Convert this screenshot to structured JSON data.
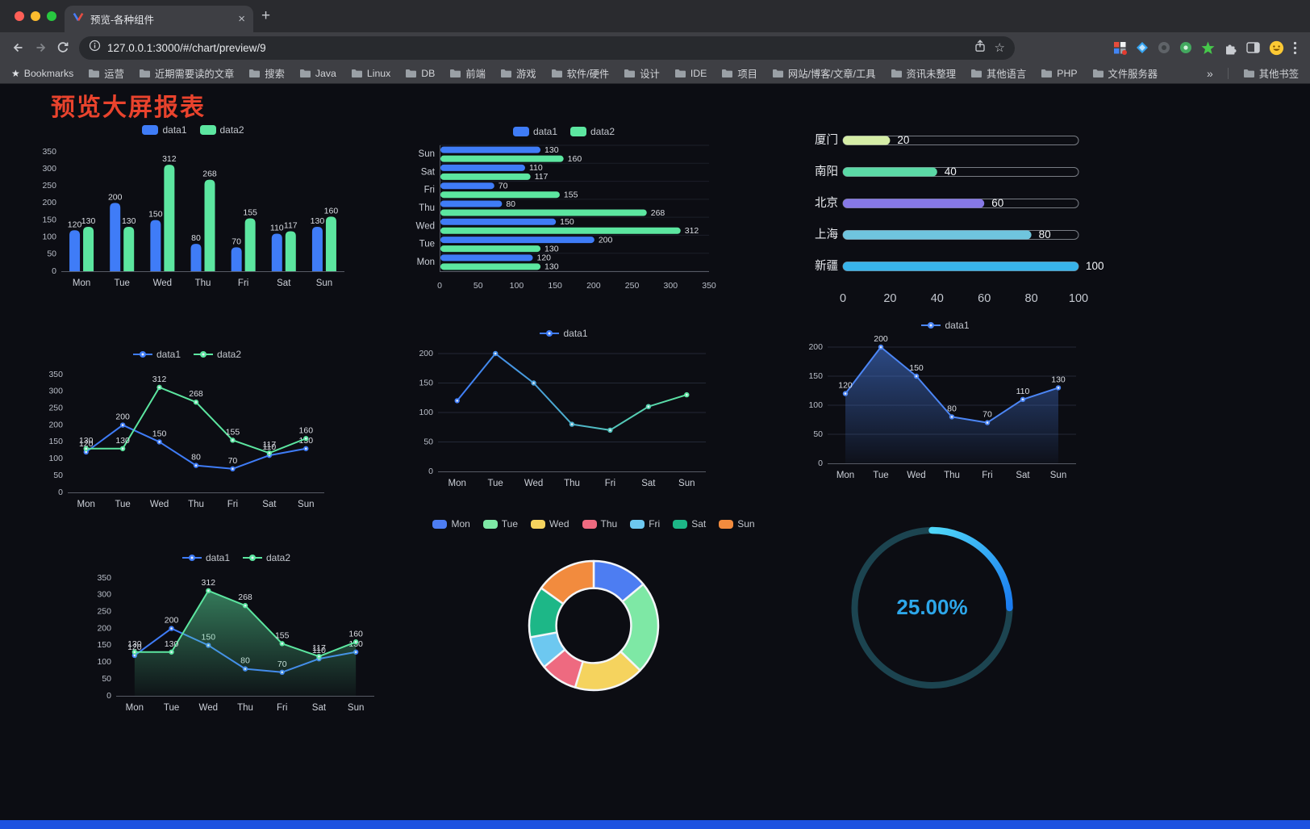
{
  "browser": {
    "tab": {
      "title": "预览-各种组件"
    },
    "url": "127.0.0.1:3000/#/chart/preview/9",
    "bookmarks_bar": {
      "manager_label": "Bookmarks",
      "folders": [
        "运营",
        "近期需要读的文章",
        "搜索",
        "Java",
        "Linux",
        "DB",
        "前端",
        "游戏",
        "软件/硬件",
        "设计",
        "IDE",
        "项目",
        "网站/博客/文章/工具",
        "资讯未整理",
        "其他语言",
        "PHP",
        "文件服务器"
      ],
      "overflow_label": "»",
      "other_label": "其他书签"
    }
  },
  "page": {
    "title": "预览大屏报表",
    "title_color": "#e9432d",
    "footer_color": "#1d52e0"
  },
  "chart_data": [
    {
      "id": "bar-vertical",
      "type": "bar",
      "categories": [
        "Mon",
        "Tue",
        "Wed",
        "Thu",
        "Fri",
        "Sat",
        "Sun"
      ],
      "series": [
        {
          "name": "data1",
          "color": "#3f7cf7",
          "values": [
            120,
            200,
            150,
            80,
            70,
            110,
            130
          ]
        },
        {
          "name": "data2",
          "color": "#5ce6a0",
          "values": [
            130,
            130,
            312,
            268,
            155,
            117,
            160
          ]
        }
      ],
      "ylim": [
        0,
        350
      ],
      "yticks": [
        0,
        50,
        100,
        150,
        200,
        250,
        300,
        350
      ],
      "value_labels": true,
      "legend_position": "top"
    },
    {
      "id": "bar-horizontal",
      "type": "hbar",
      "categories": [
        "Mon",
        "Tue",
        "Wed",
        "Thu",
        "Fri",
        "Sat",
        "Sun"
      ],
      "series": [
        {
          "name": "data1",
          "color": "#3f7cf7",
          "values": [
            120,
            200,
            150,
            80,
            70,
            110,
            130
          ]
        },
        {
          "name": "data2",
          "color": "#5ce6a0",
          "values": [
            130,
            130,
            312,
            268,
            155,
            117,
            160
          ]
        }
      ],
      "xlim": [
        0,
        350
      ],
      "xticks": [
        0,
        50,
        100,
        150,
        200,
        250,
        300,
        350
      ],
      "value_labels": true,
      "legend_position": "top"
    },
    {
      "id": "capsule-progress",
      "type": "capsule-bar",
      "max": 100,
      "xticks": [
        0,
        20,
        40,
        60,
        80,
        100
      ],
      "items": [
        {
          "label": "厦门",
          "value": 20,
          "color": "#d5eda6"
        },
        {
          "label": "南阳",
          "value": 40,
          "color": "#5bd9a6"
        },
        {
          "label": "北京",
          "value": 60,
          "color": "#8678e6"
        },
        {
          "label": "上海",
          "value": 80,
          "color": "#6fc5de"
        },
        {
          "label": "新疆",
          "value": 100,
          "color": "#38b3ea"
        }
      ]
    },
    {
      "id": "line-double",
      "type": "line",
      "categories": [
        "Mon",
        "Tue",
        "Wed",
        "Thu",
        "Fri",
        "Sat",
        "Sun"
      ],
      "series": [
        {
          "name": "data1",
          "color": "#3f7cf7",
          "values": [
            120,
            200,
            150,
            80,
            70,
            110,
            130
          ]
        },
        {
          "name": "data2",
          "color": "#5ce6a0",
          "values": [
            130,
            130,
            312,
            268,
            155,
            117,
            160
          ]
        }
      ],
      "ylim": [
        0,
        350
      ],
      "yticks": [
        0,
        50,
        100,
        150,
        200,
        250,
        300,
        350
      ],
      "value_labels": true,
      "legend_position": "top"
    },
    {
      "id": "line-gradient",
      "type": "line",
      "categories": [
        "Mon",
        "Tue",
        "Wed",
        "Thu",
        "Fri",
        "Sat",
        "Sun"
      ],
      "series": [
        {
          "name": "data1",
          "color_gradient": [
            "#3f7cf7",
            "#5ce6a0"
          ],
          "values": [
            120,
            200,
            150,
            80,
            70,
            110,
            130
          ]
        }
      ],
      "ylim": [
        0,
        200
      ],
      "yticks": [
        0,
        50,
        100,
        150,
        200
      ],
      "grid": true,
      "legend_position": "top"
    },
    {
      "id": "line-area",
      "type": "line",
      "categories": [
        "Mon",
        "Tue",
        "Wed",
        "Thu",
        "Fri",
        "Sat",
        "Sun"
      ],
      "series": [
        {
          "name": "data1",
          "color": "#4c86f5",
          "values": [
            120,
            200,
            150,
            80,
            70,
            110,
            130
          ],
          "area": true
        }
      ],
      "ylim": [
        0,
        200
      ],
      "yticks": [
        0,
        50,
        100,
        150,
        200
      ],
      "grid": true,
      "value_labels": true,
      "legend_position": "top"
    },
    {
      "id": "line-area-double",
      "type": "line",
      "categories": [
        "Mon",
        "Tue",
        "Wed",
        "Thu",
        "Fri",
        "Sat",
        "Sun"
      ],
      "series": [
        {
          "name": "data1",
          "color": "#3f7cf7",
          "values": [
            120,
            200,
            150,
            80,
            70,
            110,
            130
          ]
        },
        {
          "name": "data2",
          "color": "#5ce6a0",
          "values": [
            130,
            130,
            312,
            268,
            155,
            117,
            160
          ],
          "area": true
        }
      ],
      "ylim": [
        0,
        350
      ],
      "yticks": [
        0,
        50,
        100,
        150,
        200,
        250,
        300,
        350
      ],
      "value_labels": true,
      "legend_position": "top"
    },
    {
      "id": "donut",
      "type": "pie",
      "inner_ratio": 0.58,
      "segments": [
        {
          "label": "Mon",
          "value": 120,
          "color": "#4d7df2"
        },
        {
          "label": "Tue",
          "value": 200,
          "color": "#7ee8a5"
        },
        {
          "label": "Wed",
          "value": 150,
          "color": "#f5d35e"
        },
        {
          "label": "Thu",
          "value": 80,
          "color": "#ee6a80"
        },
        {
          "label": "Fri",
          "value": 70,
          "color": "#6dc8f0"
        },
        {
          "label": "Sat",
          "value": 110,
          "color": "#1db787"
        },
        {
          "label": "Sun",
          "value": 130,
          "color": "#f28b3e"
        }
      ],
      "legend_position": "top"
    },
    {
      "id": "gauge",
      "type": "gauge",
      "value": 25,
      "display": "25.00%",
      "text_color": "#2da7ea",
      "arc_colors": [
        "#4fd6f8",
        "#1a7bf0"
      ],
      "track_color": "#1c4450"
    }
  ]
}
